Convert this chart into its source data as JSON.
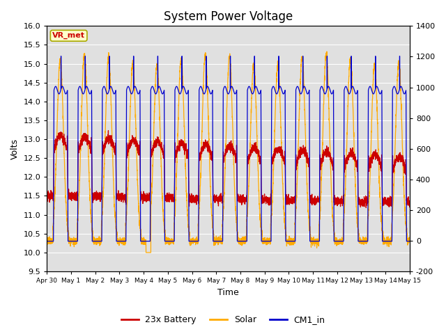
{
  "title": "System Power Voltage",
  "xlabel": "Time",
  "ylabel": "Volts",
  "xlim_start": 0,
  "xlim_end": 15,
  "ylim_left": [
    9.5,
    16.0
  ],
  "ylim_right": [
    -200,
    1400
  ],
  "xtick_labels": [
    "Apr 30",
    "May 1",
    "May 2",
    "May 3",
    "May 4",
    "May 5",
    "May 6",
    "May 7",
    "May 8",
    "May 9",
    "May 10",
    "May 11",
    "May 12",
    "May 13",
    "May 14",
    "May 15"
  ],
  "yticks_left": [
    9.5,
    10.0,
    10.5,
    11.0,
    11.5,
    12.0,
    12.5,
    13.0,
    13.5,
    14.0,
    14.5,
    15.0,
    15.5,
    16.0
  ],
  "yticks_right": [
    -200,
    0,
    200,
    400,
    600,
    800,
    1000,
    1200,
    1400
  ],
  "color_battery": "#cc0000",
  "color_solar": "#ffaa00",
  "color_cm1": "#0000cc",
  "legend_labels": [
    "23x Battery",
    "Solar",
    "CM1_in"
  ],
  "annotation_text": "VR_met",
  "background_inner": "#e0e0e0",
  "grid_color": "#ffffff",
  "title_fontsize": 12
}
